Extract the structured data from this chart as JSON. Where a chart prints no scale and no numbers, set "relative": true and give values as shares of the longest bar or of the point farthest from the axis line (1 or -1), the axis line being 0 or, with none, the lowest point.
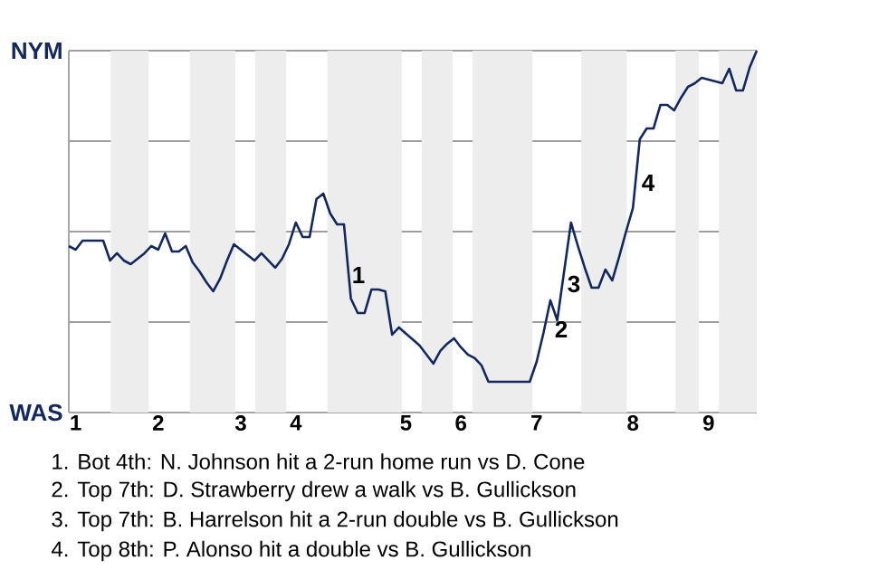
{
  "chart_data": {
    "type": "line",
    "color": "#13295e",
    "line_style": "solid",
    "relative": true,
    "categories": [
      null,
      "1",
      null,
      null,
      null,
      null,
      null,
      null,
      null,
      null,
      null,
      null,
      null,
      "2",
      null,
      null,
      null,
      null,
      null,
      null,
      null,
      null,
      null,
      null,
      null,
      "3",
      null,
      null,
      null,
      null,
      null,
      null,
      null,
      "4",
      null,
      null,
      null,
      null,
      null,
      null,
      null,
      null,
      null,
      null,
      null,
      null,
      null,
      null,
      null,
      "5",
      null,
      null,
      null,
      null,
      null,
      null,
      null,
      "6",
      null,
      null,
      null,
      null,
      null,
      null,
      null,
      null,
      null,
      null,
      "7",
      null,
      null,
      null,
      null,
      null,
      null,
      null,
      null,
      null,
      null,
      null,
      null,
      null,
      "8",
      null,
      null,
      null,
      null,
      null,
      null,
      null,
      null,
      null,
      null,
      "9",
      null,
      null,
      null,
      null,
      null,
      null,
      null
    ],
    "values": [
      0.46,
      0.45,
      0.475,
      0.475,
      0.475,
      0.475,
      0.42,
      0.44,
      0.42,
      0.41,
      0.425,
      0.44,
      0.46,
      0.45,
      0.495,
      0.445,
      0.445,
      0.46,
      0.415,
      0.39,
      0.36,
      0.335,
      0.37,
      0.42,
      0.465,
      0.45,
      0.435,
      0.42,
      0.44,
      0.42,
      0.4,
      0.425,
      0.465,
      0.525,
      0.485,
      0.485,
      0.59,
      0.605,
      0.55,
      0.52,
      0.52,
      0.315,
      0.275,
      0.275,
      0.34,
      0.34,
      0.335,
      0.215,
      0.235,
      0.218,
      0.202,
      0.185,
      0.16,
      0.135,
      0.17,
      0.19,
      0.205,
      0.18,
      0.16,
      0.15,
      0.13,
      0.085,
      0.085,
      0.085,
      0.085,
      0.085,
      0.085,
      0.085,
      0.14,
      0.22,
      0.31,
      0.255,
      0.39,
      0.525,
      0.46,
      0.4,
      0.345,
      0.345,
      0.395,
      0.365,
      0.43,
      0.5,
      0.565,
      0.755,
      0.785,
      0.785,
      0.85,
      0.85,
      0.835,
      0.87,
      0.9,
      0.91,
      0.925,
      0.92,
      0.915,
      0.91,
      0.95,
      0.89,
      0.89,
      0.955,
      1.0
    ],
    "grid": "y",
    "annotations": [
      "NYM",
      "WAS",
      "1",
      "2",
      "3",
      "4",
      "1. Bot 4th: N. Johnson hit a 2-run home run vs D. Cone",
      "2. Top 7th: D. Strawberry drew a walk vs B. Gullickson",
      "3. Top 7th: B. Harrelson hit a 2-run double vs B. Gullickson",
      "4. Top 8th: P. Alonso hit a double vs B. Gullickson"
    ]
  }
}
